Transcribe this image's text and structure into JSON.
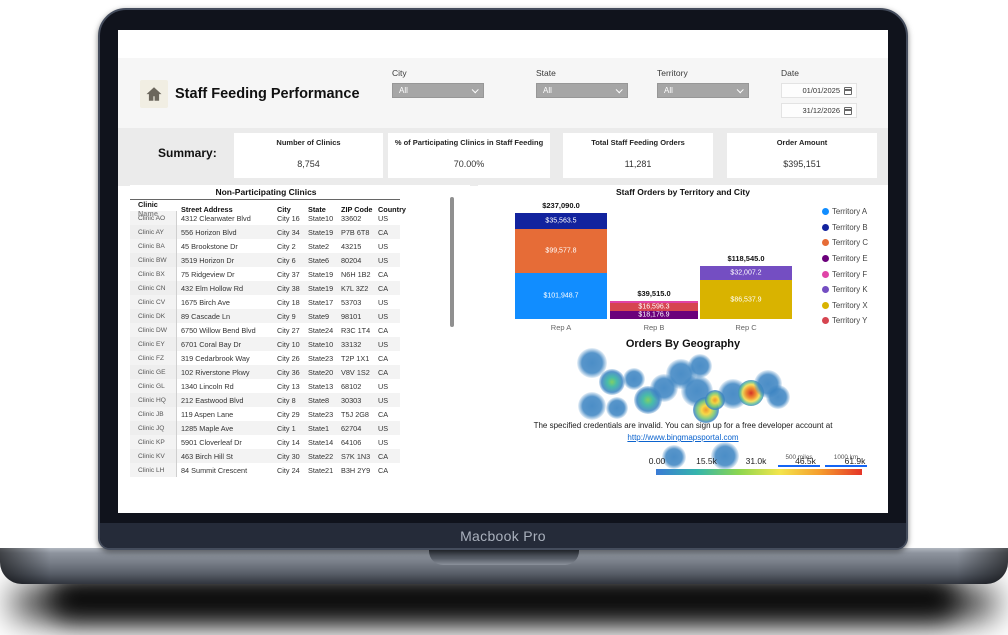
{
  "device": {
    "label": "Macbook Pro"
  },
  "header": {
    "title": "Staff Feeding Performance",
    "filters": [
      {
        "label": "City",
        "value": "All"
      },
      {
        "label": "State",
        "value": "All"
      },
      {
        "label": "Territory",
        "value": "All"
      }
    ],
    "date_filter": {
      "label": "Date",
      "start": "01/01/2025",
      "end": "31/12/2026"
    }
  },
  "summary": {
    "label": "Summary:",
    "cards": [
      {
        "label": "Number of Clinics",
        "value": "8,754"
      },
      {
        "label": "% of Participating Clinics in Staff Feeding",
        "value": "70.00%"
      },
      {
        "label": "Total Staff Feeding Orders",
        "value": "11,281"
      },
      {
        "label": "Order Amount",
        "value": "$395,151"
      }
    ]
  },
  "table": {
    "title": "Non-Participating Clinics",
    "columns": [
      "Clinic Name",
      "Street Address",
      "City",
      "State",
      "ZIP Code",
      "Country"
    ],
    "rows": [
      [
        "Clinic AO",
        "4312 Clearwater Blvd",
        "City 16",
        "State10",
        "33602",
        "US"
      ],
      [
        "Clinic AY",
        "556 Horizon Blvd",
        "City 34",
        "State19",
        "P7B 6T8",
        "CA"
      ],
      [
        "Clinic BA",
        "45 Brookstone Dr",
        "City 2",
        "State2",
        "43215",
        "US"
      ],
      [
        "Clinic BW",
        "3519 Horizon Dr",
        "City 6",
        "State6",
        "80204",
        "US"
      ],
      [
        "Clinic BX",
        "75 Ridgeview Dr",
        "City 37",
        "State19",
        "N6H 1B2",
        "CA"
      ],
      [
        "Clinic CN",
        "432 Elm Hollow Rd",
        "City 38",
        "State19",
        "K7L 3Z2",
        "CA"
      ],
      [
        "Clinic CV",
        "1675 Birch Ave",
        "City 18",
        "State17",
        "53703",
        "US"
      ],
      [
        "Clinic DK",
        "89 Cascade Ln",
        "City 9",
        "State9",
        "98101",
        "US"
      ],
      [
        "Clinic DW",
        "6750 Willow Bend Blvd",
        "City 27",
        "State24",
        "R3C 1T4",
        "CA"
      ],
      [
        "Clinic EY",
        "6701 Coral Bay Dr",
        "City 10",
        "State10",
        "33132",
        "US"
      ],
      [
        "Clinic FZ",
        "319 Cedarbrook Way",
        "City 26",
        "State23",
        "T2P 1X1",
        "CA"
      ],
      [
        "Clinic GE",
        "102 Riverstone Pkwy",
        "City 36",
        "State20",
        "V8V 1S2",
        "CA"
      ],
      [
        "Clinic GL",
        "1340 Lincoln Rd",
        "City 13",
        "State13",
        "68102",
        "US"
      ],
      [
        "Clinic HQ",
        "212 Eastwood Blvd",
        "City 8",
        "State8",
        "30303",
        "US"
      ],
      [
        "Clinic JB",
        "119 Aspen Lane",
        "City 29",
        "State23",
        "T5J 2G8",
        "CA"
      ],
      [
        "Clinic JQ",
        "1285 Maple Ave",
        "City 1",
        "State1",
        "62704",
        "US"
      ],
      [
        "Clinic KP",
        "5901 Cloverleaf Dr",
        "City 14",
        "State14",
        "64106",
        "US"
      ],
      [
        "Clinic KV",
        "463 Birch Hill St",
        "City 30",
        "State22",
        "S7K 1N3",
        "CA"
      ],
      [
        "Clinic LH",
        "84 Summit Crescent",
        "City 24",
        "State21",
        "B3H 2Y9",
        "CA"
      ]
    ]
  },
  "chart_data": [
    {
      "type": "bar",
      "title": "Staff Orders by Territory and City",
      "stacked": true,
      "categories": [
        "Rep A",
        "Rep B",
        "Rep C"
      ],
      "ylim": [
        0,
        237090
      ],
      "grid": false,
      "legend_position": "right",
      "bars": [
        {
          "category": "Rep A",
          "total": 237090.0,
          "total_label": "$237,090.0",
          "segments": [
            {
              "name": "Territory A",
              "value": 101948.7,
              "label": "$101,948.7",
              "color": "#118DFF"
            },
            {
              "name": "Territory C",
              "value": 99577.8,
              "label": "$99,577.8",
              "color": "#E66C37"
            },
            {
              "name": "Territory B",
              "value": 35563.5,
              "label": "$35,563.5",
              "color": "#12239E"
            }
          ]
        },
        {
          "category": "Rep B",
          "total": 39515.0,
          "total_label": "$39,515.0",
          "segments": [
            {
              "name": "Territory E",
              "value": 18176.9,
              "label": "$18,176.9",
              "color": "#6B007B"
            },
            {
              "name": "Territory Y",
              "value": 16596.3,
              "label": "$16,596.3",
              "color": "#D64550"
            },
            {
              "name": "Territory F",
              "value": 4741.8,
              "label": "",
              "color": "#E044A7"
            }
          ]
        },
        {
          "category": "Rep C",
          "total": 118545.0,
          "total_label": "$118,545.0",
          "segments": [
            {
              "name": "Territory X",
              "value": 86537.9,
              "label": "$86,537.9",
              "color": "#D9B300"
            },
            {
              "name": "Territory K",
              "value": 32007.2,
              "label": "$32,007.2",
              "color": "#744EC2"
            }
          ]
        }
      ],
      "legend": [
        {
          "name": "Territory A",
          "color": "#118DFF"
        },
        {
          "name": "Territory B",
          "color": "#12239E"
        },
        {
          "name": "Territory C",
          "color": "#E66C37"
        },
        {
          "name": "Territory E",
          "color": "#6B007B"
        },
        {
          "name": "Territory F",
          "color": "#E044A7"
        },
        {
          "name": "Territory K",
          "color": "#744EC2"
        },
        {
          "name": "Territory X",
          "color": "#D9B300"
        },
        {
          "name": "Territory Y",
          "color": "#D64550"
        }
      ]
    },
    {
      "type": "heatmap",
      "title": "Orders By Geography",
      "error_message": "The specified credentials are invalid. You can sign up for a free developer account at",
      "error_link": "http://www.bingmapsportal.com",
      "scale_miles": "500 miles",
      "scale_km": "1000 km",
      "color_scale": {
        "ticks": [
          "0.00",
          "15.5k",
          "31.0k",
          "46.5k",
          "61.9k"
        ],
        "min": 0,
        "max": 61900,
        "colors": [
          "#3a7bd5",
          "#35b5ac",
          "#8bd64f",
          "#f3e54c",
          "#f59b2d",
          "#e53528"
        ]
      },
      "heat_points": [
        {
          "x": 114,
          "y": 26,
          "r": 15,
          "level": "low"
        },
        {
          "x": 134,
          "y": 45,
          "r": 13,
          "level": "mid"
        },
        {
          "x": 156,
          "y": 42,
          "r": 11,
          "level": "low"
        },
        {
          "x": 114,
          "y": 69,
          "r": 14,
          "level": "low"
        },
        {
          "x": 139,
          "y": 71,
          "r": 11,
          "level": "low"
        },
        {
          "x": 170,
          "y": 63,
          "r": 14,
          "level": "mid"
        },
        {
          "x": 186,
          "y": 51,
          "r": 14,
          "level": "low"
        },
        {
          "x": 203,
          "y": 37,
          "r": 15,
          "level": "low"
        },
        {
          "x": 222,
          "y": 29,
          "r": 12,
          "level": "low"
        },
        {
          "x": 219,
          "y": 54,
          "r": 16,
          "level": "low"
        },
        {
          "x": 228,
          "y": 73,
          "r": 13,
          "level": "hot"
        },
        {
          "x": 237,
          "y": 63,
          "r": 10,
          "level": "hot"
        },
        {
          "x": 255,
          "y": 57,
          "r": 15,
          "level": "low"
        },
        {
          "x": 273,
          "y": 56,
          "r": 13,
          "level": "peak"
        },
        {
          "x": 290,
          "y": 47,
          "r": 14,
          "level": "low"
        },
        {
          "x": 300,
          "y": 60,
          "r": 12,
          "level": "low"
        },
        {
          "x": 196,
          "y": 120,
          "r": 12,
          "level": "low"
        },
        {
          "x": 247,
          "y": 119,
          "r": 14,
          "level": "low"
        }
      ]
    }
  ],
  "colors": {
    "dropdown_bg": "#a6a6a6",
    "header_strip": "#f6f6f6",
    "summary_strip": "#ebebeb",
    "row_stripe": "#f3f3f3",
    "link_blue": "#0b63ce",
    "scrollbar": "#909090",
    "home_tile": "#f1eee3"
  }
}
